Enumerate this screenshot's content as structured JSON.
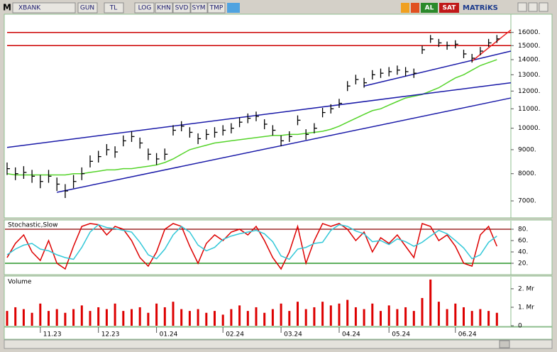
{
  "toolbar": {
    "symbol_prefix": "M",
    "symbol": "XBANK",
    "buttons": [
      "GUN",
      "TL",
      "LOG",
      "KHN",
      "SVD",
      "SYM",
      "TMP"
    ],
    "buy": "AL",
    "sell": "SAT",
    "brand": "MATRiKS"
  },
  "chart_data": [
    {
      "type": "hlc",
      "log_scale": true,
      "color": "#000000",
      "ylim": [
        6440,
        17500
      ],
      "yticks": [
        {
          "value": 7000,
          "label": "7000."
        },
        {
          "value": 8000,
          "label": "8000."
        },
        {
          "value": 9000,
          "label": "9000."
        },
        {
          "value": 10000,
          "label": "10000."
        },
        {
          "value": 11000,
          "label": "11000."
        },
        {
          "value": 12000,
          "label": "12000."
        },
        {
          "value": 13000,
          "label": "13000."
        },
        {
          "value": 14000,
          "label": "14000."
        },
        {
          "value": 15000,
          "label": "15000."
        },
        {
          "value": 16000,
          "label": "16000."
        }
      ],
      "high": [
        8450,
        8250,
        8300,
        8150,
        7950,
        8150,
        7850,
        7600,
        7950,
        8250,
        8750,
        8950,
        9250,
        9150,
        9650,
        9850,
        9550,
        9050,
        8850,
        9050,
        10150,
        10350,
        10050,
        9750,
        9950,
        10050,
        10150,
        10250,
        10550,
        10750,
        10850,
        10450,
        10150,
        9650,
        9850,
        10650,
        9950,
        10250,
        11050,
        11250,
        11550,
        12600,
        13000,
        12800,
        13300,
        13400,
        13500,
        13600,
        13500,
        13400,
        15000,
        15800,
        15500,
        15300,
        15400,
        14700,
        14400,
        14900,
        15500,
        15800
      ],
      "low": [
        7950,
        7750,
        7800,
        7650,
        7450,
        7650,
        7350,
        7100,
        7450,
        7750,
        8250,
        8450,
        8750,
        8650,
        9150,
        9350,
        9050,
        8550,
        8350,
        8550,
        9650,
        9850,
        9550,
        9250,
        9450,
        9550,
        9650,
        9750,
        10050,
        10250,
        10350,
        9950,
        9650,
        9150,
        9350,
        10150,
        9450,
        9750,
        10550,
        10750,
        11050,
        12000,
        12400,
        12200,
        12700,
        12800,
        12900,
        13000,
        12900,
        12800,
        14400,
        15200,
        14900,
        14700,
        14800,
        14100,
        13800,
        14300,
        14900,
        15200
      ],
      "close": [
        8200,
        8000,
        8050,
        7900,
        7700,
        7900,
        7600,
        7350,
        7700,
        8000,
        8500,
        8700,
        9000,
        8900,
        9400,
        9600,
        9300,
        8800,
        8600,
        8800,
        9900,
        10100,
        9800,
        9500,
        9700,
        9800,
        9900,
        10000,
        10300,
        10500,
        10600,
        10200,
        9900,
        9400,
        9600,
        10400,
        9700,
        10000,
        10800,
        11000,
        11300,
        12300,
        12700,
        12500,
        13000,
        13100,
        13200,
        13300,
        13200,
        13100,
        14700,
        15500,
        15200,
        15000,
        15100,
        14400,
        14100,
        14600,
        15200,
        15500
      ],
      "series": [
        {
          "color": "#55d42a",
          "values": [
            8000,
            7950,
            7950,
            7950,
            7950,
            7950,
            7950,
            7950,
            8000,
            8000,
            8050,
            8100,
            8150,
            8150,
            8200,
            8200,
            8250,
            8300,
            8350,
            8450,
            8600,
            8800,
            9000,
            9100,
            9200,
            9300,
            9350,
            9400,
            9450,
            9500,
            9550,
            9600,
            9650,
            9650,
            9700,
            9700,
            9750,
            9800,
            9850,
            9950,
            10100,
            10300,
            10500,
            10700,
            10900,
            11000,
            11200,
            11400,
            11600,
            11700,
            11800,
            12000,
            12200,
            12500,
            12800,
            13000,
            13300,
            13600,
            13800,
            14000
          ]
        }
      ],
      "lines": [
        {
          "color": "#cc0000",
          "from": [
            0,
            16000
          ],
          "to": [
            61,
            16000
          ]
        },
        {
          "color": "#cc0000",
          "from": [
            0,
            15000
          ],
          "to": [
            61,
            15000
          ]
        },
        {
          "color": "#1a1aa8",
          "from": [
            0,
            9100
          ],
          "to": [
            61,
            12500
          ]
        },
        {
          "color": "#1a1aa8",
          "from": [
            6,
            7300
          ],
          "to": [
            61,
            11600
          ]
        },
        {
          "color": "#1a1aa8",
          "from": [
            43,
            12300
          ],
          "to": [
            61,
            14600
          ]
        },
        {
          "color": "#ee2222",
          "from": [
            56,
            13900
          ],
          "to": [
            61,
            16200
          ]
        }
      ]
    },
    {
      "type": "line",
      "title": "Stochastic,Slow",
      "ylim": [
        0,
        95
      ],
      "yticks": [
        {
          "value": 20,
          "label": "20."
        },
        {
          "value": 40,
          "label": "40."
        },
        {
          "value": 60,
          "label": "60."
        },
        {
          "value": 80,
          "label": "80."
        }
      ],
      "levels": [
        {
          "value": 80,
          "color": "#8b0000"
        },
        {
          "value": 20,
          "color": "#008000"
        }
      ],
      "series": [
        {
          "color": "#dd0000",
          "values": [
            30,
            55,
            70,
            40,
            25,
            60,
            20,
            10,
            50,
            85,
            90,
            88,
            70,
            85,
            80,
            60,
            30,
            15,
            40,
            80,
            90,
            85,
            50,
            20,
            55,
            70,
            60,
            75,
            80,
            70,
            85,
            60,
            30,
            10,
            40,
            85,
            20,
            60,
            90,
            85,
            90,
            80,
            60,
            75,
            40,
            65,
            55,
            70,
            50,
            30,
            90,
            85,
            60,
            70,
            50,
            20,
            15,
            70,
            85,
            50
          ]
        },
        {
          "color": "#33c8d8",
          "values": [
            35,
            45,
            52,
            55,
            45,
            42,
            35,
            30,
            27,
            48,
            75,
            88,
            83,
            81,
            78,
            75,
            57,
            35,
            28,
            45,
            70,
            85,
            75,
            52,
            42,
            48,
            62,
            68,
            72,
            75,
            78,
            72,
            58,
            33,
            27,
            45,
            48,
            55,
            57,
            78,
            88,
            85,
            77,
            72,
            58,
            60,
            53,
            63,
            58,
            50,
            57,
            68,
            78,
            72,
            60,
            47,
            28,
            35,
            57,
            68
          ]
        }
      ]
    },
    {
      "type": "bar",
      "title": "Volume",
      "color": "#dd0000",
      "ylim": [
        0,
        2650000
      ],
      "yticks": [
        0,
        {
          "value": 1000000,
          "label": "1. Mr"
        },
        {
          "value": 2000000,
          "label": "2. Mr"
        }
      ],
      "categories": [
        null,
        null,
        null,
        null,
        "11.23",
        null,
        null,
        null,
        null,
        null,
        null,
        "12.23",
        null,
        null,
        null,
        null,
        null,
        null,
        "01.24",
        null,
        null,
        null,
        null,
        null,
        null,
        null,
        "02.24",
        null,
        null,
        null,
        null,
        null,
        null,
        "03.24",
        null,
        null,
        null,
        null,
        null,
        null,
        "04.24",
        null,
        null,
        null,
        null,
        null,
        "05.24",
        null,
        null,
        null,
        null,
        null,
        null,
        null,
        "06.24",
        null,
        null,
        null,
        null,
        null
      ],
      "values": [
        800000,
        1000000,
        900000,
        700000,
        1200000,
        800000,
        900000,
        700000,
        900000,
        1100000,
        800000,
        1000000,
        900000,
        1200000,
        800000,
        900000,
        1000000,
        700000,
        1200000,
        1000000,
        1300000,
        900000,
        800000,
        900000,
        700000,
        800000,
        600000,
        900000,
        1100000,
        800000,
        1000000,
        700000,
        900000,
        1200000,
        800000,
        1300000,
        900000,
        1000000,
        1300000,
        1100000,
        1200000,
        1400000,
        1000000,
        900000,
        1200000,
        800000,
        1100000,
        900000,
        1000000,
        800000,
        1500000,
        2500000,
        1300000,
        900000,
        1200000,
        1000000,
        800000,
        900000,
        800000,
        700000
      ]
    }
  ]
}
